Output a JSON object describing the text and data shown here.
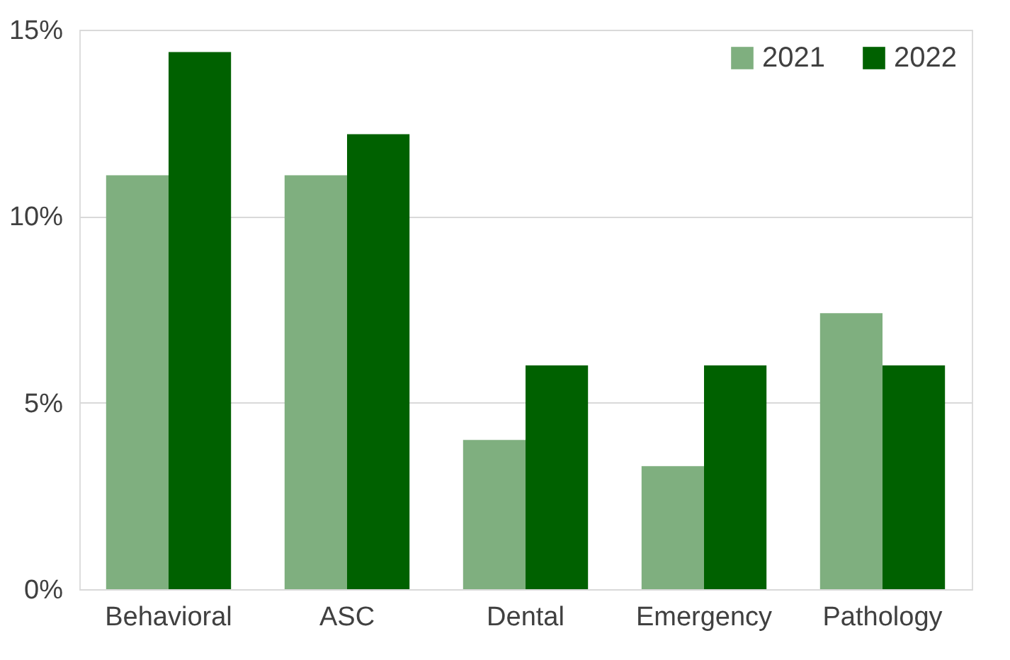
{
  "chart_data": {
    "type": "bar",
    "categories": [
      "Behavioral",
      "ASC",
      "Dental",
      "Emergency",
      "Pathology"
    ],
    "series": [
      {
        "name": "2021",
        "color": "#7faf7f",
        "values": [
          11.1,
          11.1,
          4.0,
          3.3,
          7.4
        ]
      },
      {
        "name": "2022",
        "color": "#006100",
        "values": [
          14.4,
          12.2,
          6.0,
          6.0,
          6.0
        ]
      }
    ],
    "ylim": [
      0,
      15
    ],
    "yticks": [
      {
        "value": 0,
        "label": "0%"
      },
      {
        "value": 5,
        "label": "5%"
      },
      {
        "value": 10,
        "label": "10%"
      },
      {
        "value": 15,
        "label": "15%"
      }
    ],
    "grid": "y",
    "legend": "top right"
  }
}
